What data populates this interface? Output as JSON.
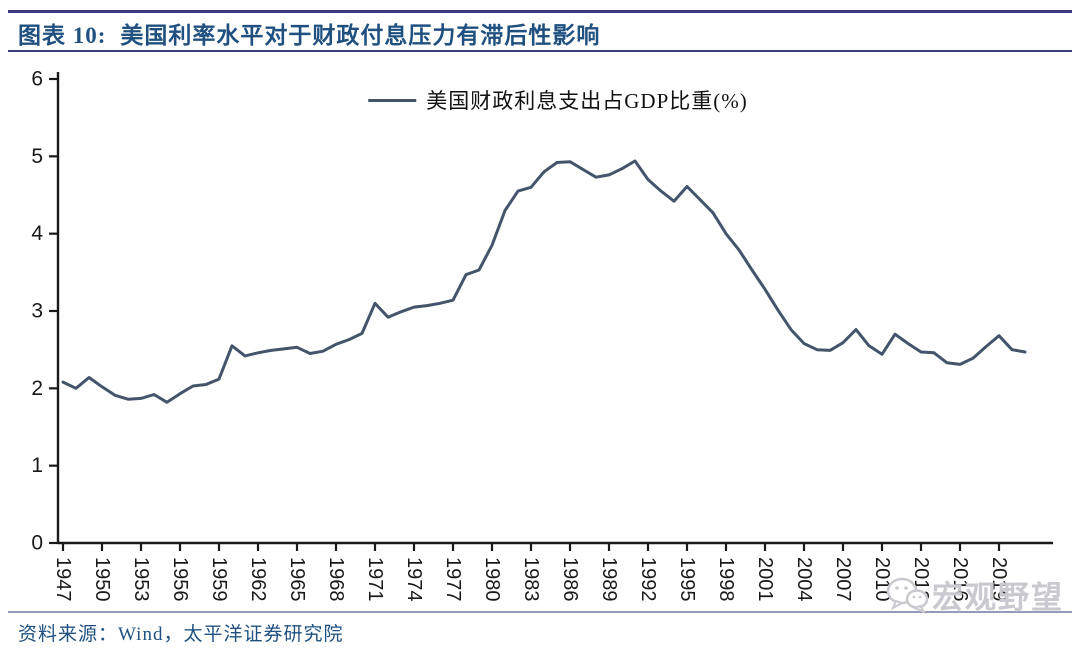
{
  "header": {
    "title_prefix": "图表 10:",
    "title_text": "美国利率水平对于财政付息压力有滞后性影响"
  },
  "footer": {
    "source_label": "资料来源：Wind，太平洋证券研究院"
  },
  "watermark": {
    "icon": "wechat-icon",
    "text": "宏观野望"
  },
  "colors": {
    "line": "#44546A",
    "title_text": "#1F5080",
    "title_rule": "#3C3C7C",
    "separator": "#9898B8",
    "axis": "#1A1A1A",
    "watermark": "#C9C9CF"
  },
  "chart_data": {
    "type": "line",
    "title": "",
    "xlabel": "",
    "ylabel": "",
    "grid": false,
    "legend_position": "top-center",
    "ylim": [
      0,
      6
    ],
    "yticks": [
      0,
      1,
      2,
      3,
      4,
      5,
      6
    ],
    "xtick_labels": [
      "1947",
      "1950",
      "1953",
      "1956",
      "1959",
      "1962",
      "1965",
      "1968",
      "1971",
      "1974",
      "1977",
      "1980",
      "1983",
      "1986",
      "1989",
      "1992",
      "1995",
      "1998",
      "2001",
      "2004",
      "2007",
      "2010",
      "2013",
      "2016",
      "2019"
    ],
    "years": [
      1947,
      1948,
      1949,
      1950,
      1951,
      1952,
      1953,
      1954,
      1955,
      1956,
      1957,
      1958,
      1959,
      1960,
      1961,
      1962,
      1963,
      1964,
      1965,
      1966,
      1967,
      1968,
      1969,
      1970,
      1971,
      1972,
      1973,
      1974,
      1975,
      1976,
      1977,
      1978,
      1979,
      1980,
      1981,
      1982,
      1983,
      1984,
      1985,
      1986,
      1987,
      1988,
      1989,
      1990,
      1991,
      1992,
      1993,
      1994,
      1995,
      1996,
      1997,
      1998,
      1999,
      2000,
      2001,
      2002,
      2003,
      2004,
      2005,
      2006,
      2007,
      2008,
      2009,
      2010,
      2011,
      2012,
      2013,
      2014,
      2015,
      2016,
      2017,
      2018,
      2019,
      2020,
      2021
    ],
    "series": [
      {
        "name": "美国财政利息支出占GDP比重(%)",
        "values": [
          2.08,
          2.0,
          2.14,
          2.02,
          1.91,
          1.86,
          1.87,
          1.92,
          1.82,
          1.93,
          2.03,
          2.05,
          2.12,
          2.55,
          2.42,
          2.46,
          2.49,
          2.51,
          2.53,
          2.45,
          2.48,
          2.57,
          2.63,
          2.71,
          3.1,
          2.92,
          2.99,
          3.05,
          3.07,
          3.1,
          3.14,
          3.47,
          3.53,
          3.85,
          4.3,
          4.55,
          4.6,
          4.8,
          4.92,
          4.93,
          4.83,
          4.73,
          4.76,
          4.84,
          4.94,
          4.7,
          4.55,
          4.42,
          4.61,
          4.44,
          4.27,
          4.0,
          3.79,
          3.53,
          3.28,
          3.01,
          2.76,
          2.58,
          2.5,
          2.49,
          2.59,
          2.76,
          2.55,
          2.44,
          2.7,
          2.58,
          2.47,
          2.46,
          2.33,
          2.31,
          2.39,
          2.54,
          2.68,
          2.5,
          2.47
        ]
      }
    ]
  }
}
